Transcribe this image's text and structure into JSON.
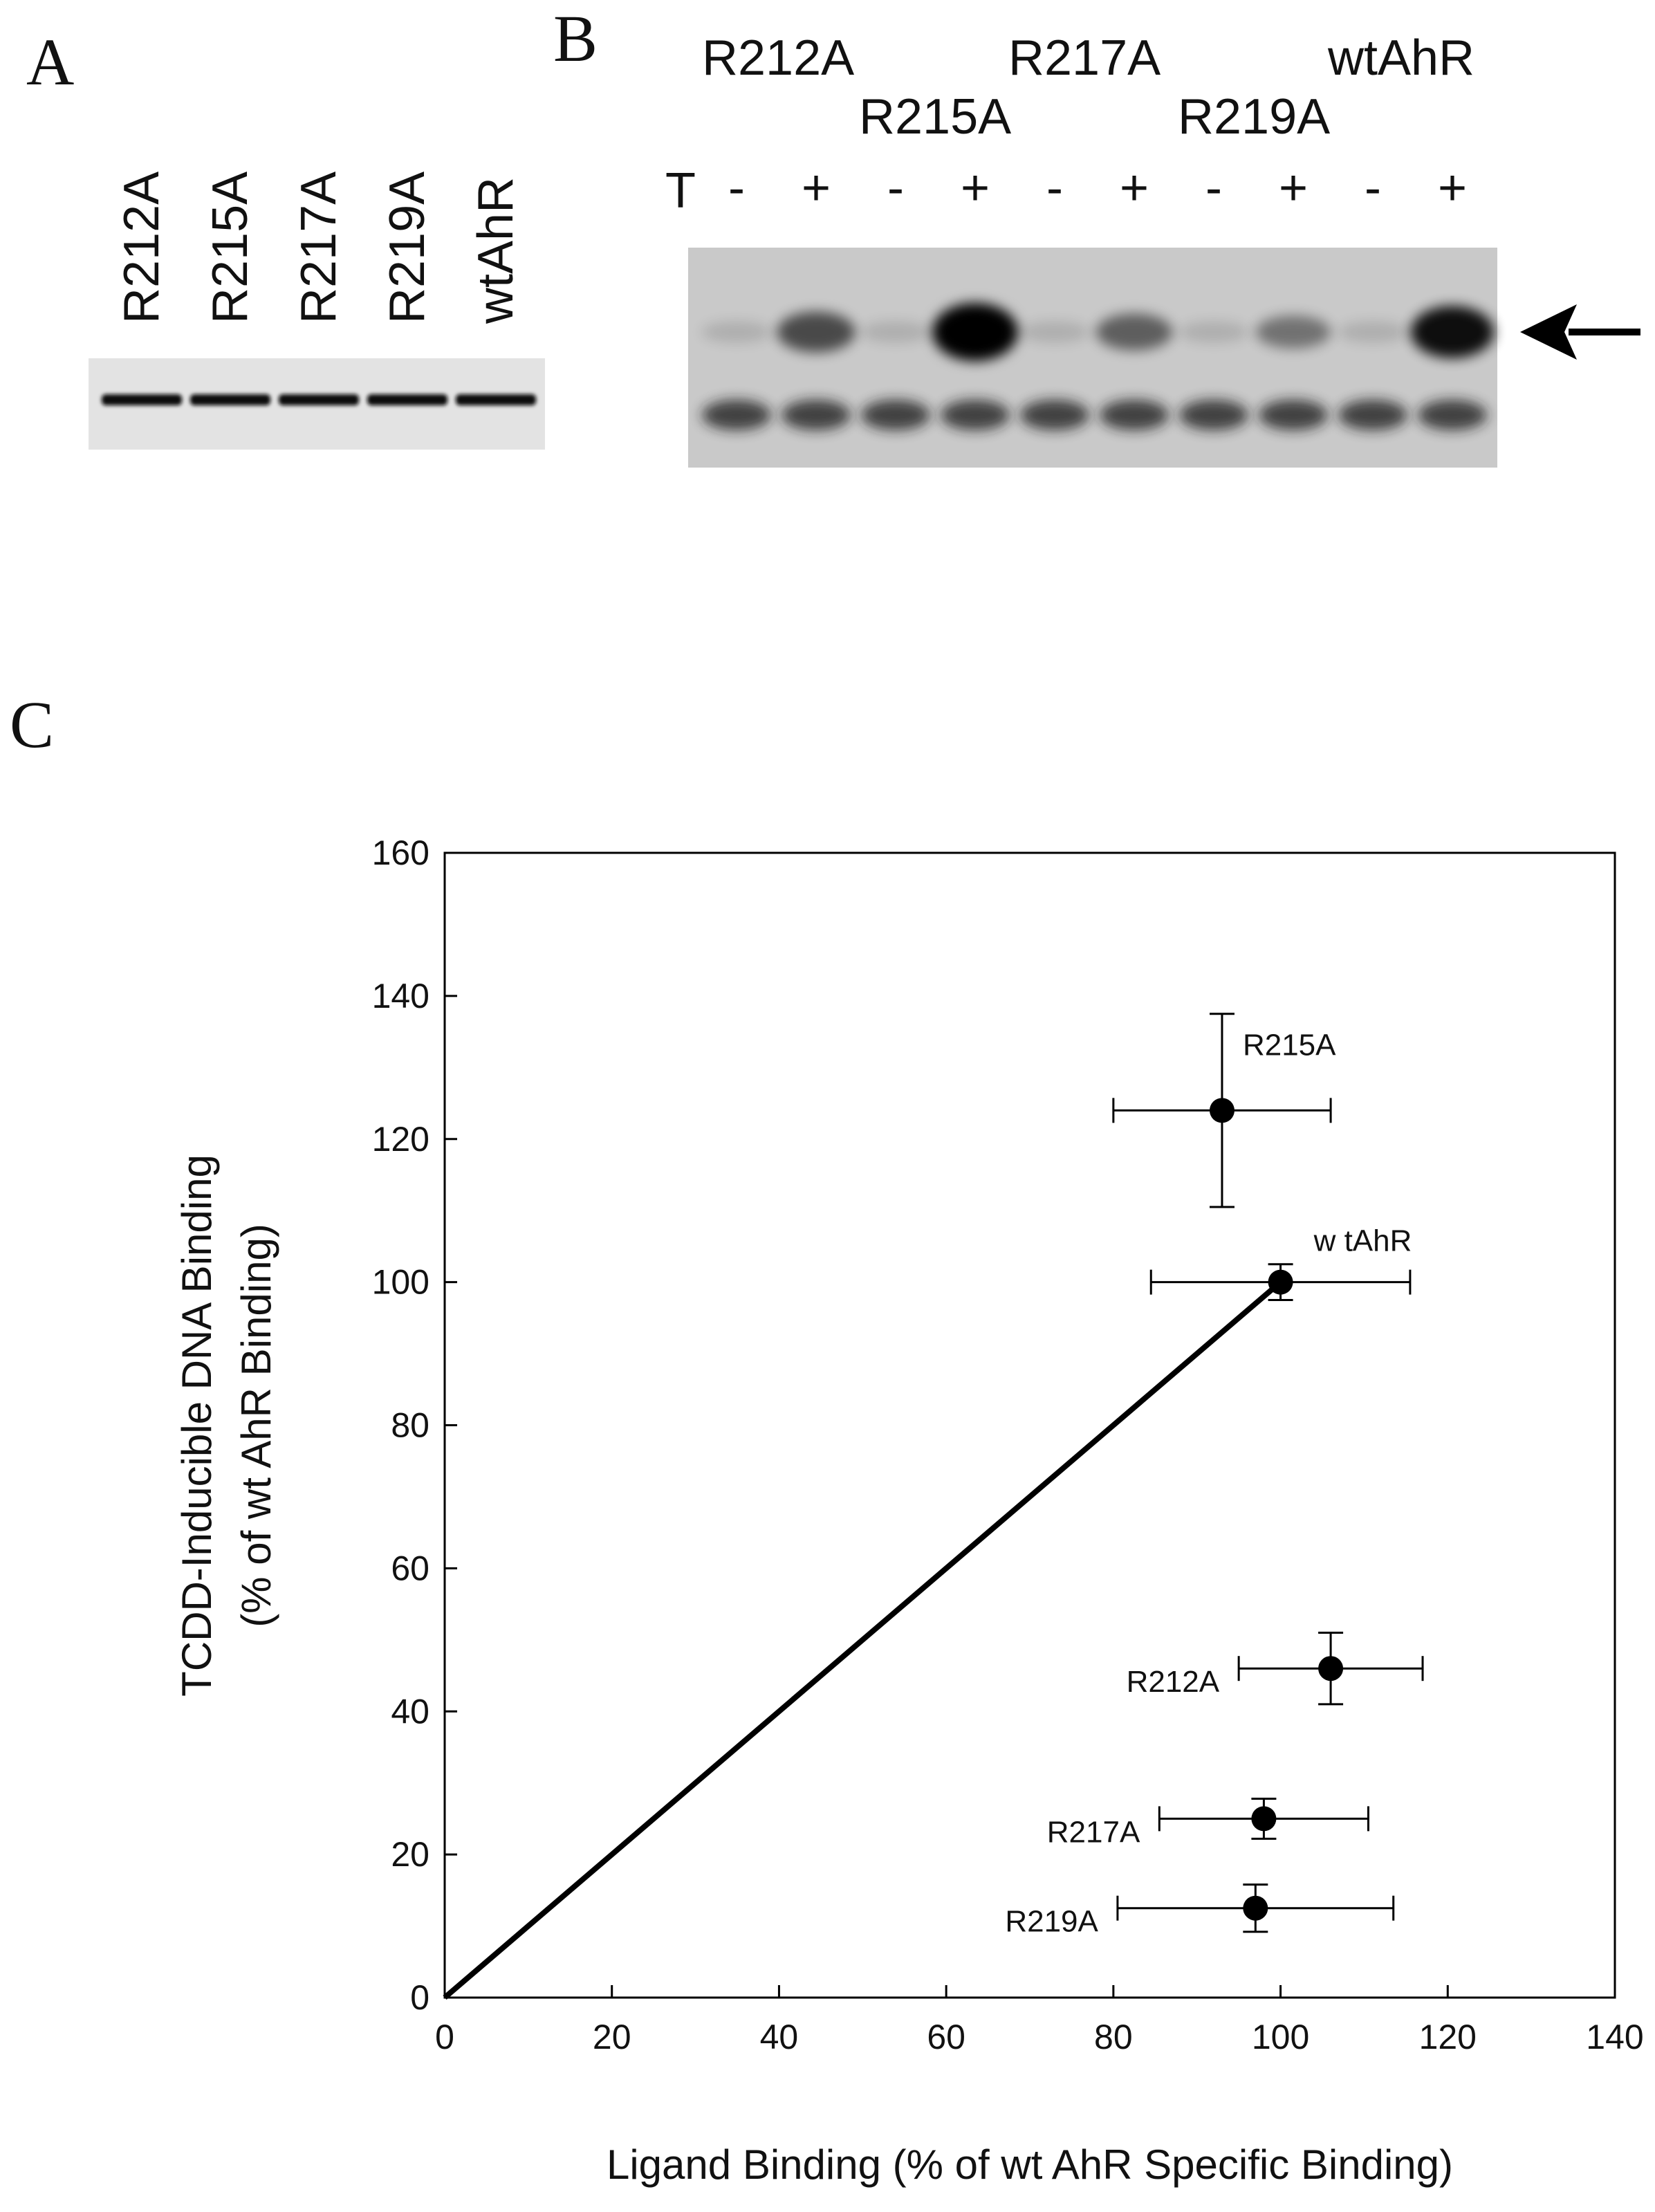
{
  "panels": {
    "a": {
      "letter": "A",
      "lanes": [
        "R212A",
        "R215A",
        "R217A",
        "R219A",
        "wtAhR"
      ]
    },
    "b": {
      "letter": "B",
      "lanes_top": [
        "R212A",
        "R217A",
        "wtAhR"
      ],
      "lanes_bottom": [
        "R215A",
        "R219A"
      ],
      "row_label": "T",
      "treatment": [
        "-",
        "+",
        "-",
        "+",
        "-",
        "+",
        "-",
        "+",
        "-",
        "+"
      ],
      "complex_intensity": [
        0.05,
        0.55,
        0.05,
        1.0,
        0.05,
        0.45,
        0.05,
        0.35,
        0.05,
        0.85
      ],
      "arrow": "band-arrow"
    },
    "c": {
      "letter": "C"
    }
  },
  "chart_data": {
    "type": "scatter",
    "xlabel": "Ligand Binding (% of wt AhR Specific Binding)",
    "ylabel_line1": "TCDD-Inducible DNA Binding",
    "ylabel_line2": "(% of wt AhR Binding)",
    "xlim": [
      0,
      140
    ],
    "ylim": [
      0,
      160
    ],
    "xticks": [
      0,
      20,
      40,
      60,
      80,
      100,
      120,
      140
    ],
    "yticks": [
      0,
      20,
      40,
      60,
      80,
      100,
      120,
      140,
      160
    ],
    "grid": false,
    "points": [
      {
        "label": "R215A",
        "x": 93,
        "y": 124,
        "xerr": 13,
        "yerr": 13.5,
        "label_side": "right"
      },
      {
        "label": "w tAhR",
        "x": 100,
        "y": 100,
        "xerr": 15.5,
        "yerr": 2.5,
        "label_side": "right"
      },
      {
        "label": "R212A",
        "x": 106,
        "y": 46,
        "xerr": 11,
        "yerr": 5,
        "label_side": "left"
      },
      {
        "label": "R217A",
        "x": 98,
        "y": 25,
        "xerr": 12.5,
        "yerr": 2.8,
        "label_side": "left"
      },
      {
        "label": "R219A",
        "x": 97,
        "y": 12.5,
        "xerr": 16.5,
        "yerr": 3.3,
        "label_side": "left"
      }
    ],
    "fit_line": {
      "from": [
        0,
        0
      ],
      "to": [
        100,
        100
      ]
    }
  }
}
